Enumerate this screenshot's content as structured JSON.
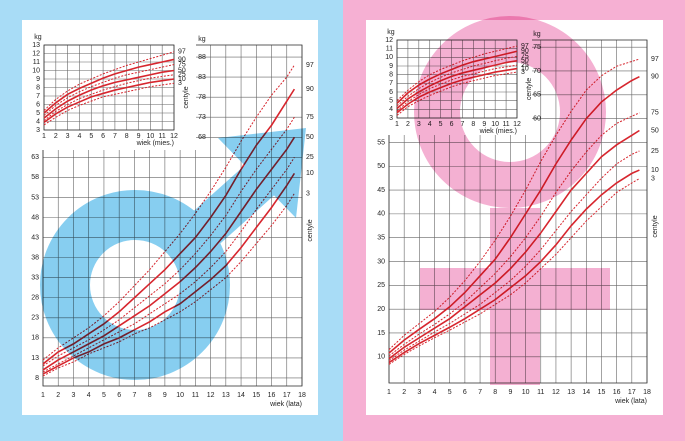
{
  "chart_data": [
    {
      "type": "line",
      "x_label": "wiek (lata)",
      "y2_label": "kg",
      "right_label": "centyle",
      "x": [
        1,
        2,
        3,
        4,
        5,
        6,
        7,
        8,
        9,
        10,
        11,
        12,
        13,
        14,
        15,
        16,
        17,
        17.5
      ],
      "xlim": [
        1,
        18
      ],
      "xticks": [
        1,
        2,
        3,
        4,
        5,
        6,
        7,
        8,
        9,
        10,
        11,
        12,
        13,
        14,
        15,
        16,
        17,
        18
      ],
      "ylim": [
        6,
        91
      ],
      "yticks": [
        8,
        13,
        18,
        23,
        28,
        33,
        38,
        43,
        48,
        53,
        58,
        63
      ],
      "y2lim": [
        6,
        91
      ],
      "y2ticks": [
        68,
        73,
        78,
        83,
        88
      ],
      "grid": true,
      "series": [
        {
          "name": "97",
          "color": "#d7262e",
          "dashed": true,
          "values": [
            12.5,
            15.5,
            18,
            20.5,
            23.5,
            27,
            31,
            35,
            39.5,
            44,
            49,
            54.5,
            60.5,
            67,
            73,
            78.5,
            83,
            86
          ]
        },
        {
          "name": "90",
          "color": "#d7262e",
          "dashed": false,
          "values": [
            11.5,
            14.5,
            16.5,
            19,
            21.5,
            24.5,
            28,
            31.5,
            35,
            39,
            43,
            48,
            53.5,
            60,
            66,
            71,
            77,
            80
          ]
        },
        {
          "name": "75",
          "color": "#d7262e",
          "dashed": true,
          "values": [
            11,
            13.5,
            15.5,
            17.5,
            20,
            22.5,
            25.5,
            28.5,
            31.5,
            35,
            39,
            43.5,
            48.5,
            54.5,
            60,
            65,
            70,
            73
          ]
        },
        {
          "name": "50",
          "color": "#d7262e",
          "dashed": false,
          "values": [
            10,
            12.5,
            14.5,
            16.5,
            18.5,
            21,
            23.5,
            26,
            29,
            32,
            35.5,
            39.5,
            44,
            49.5,
            55,
            60,
            65,
            68
          ]
        },
        {
          "name": "25",
          "color": "#d7262e",
          "dashed": true,
          "values": [
            9.5,
            11.5,
            13.5,
            15.5,
            17.5,
            19.5,
            21.5,
            24,
            26.5,
            29,
            32,
            35.5,
            39.5,
            44.5,
            50,
            55,
            60,
            63
          ]
        },
        {
          "name": "10",
          "color": "#d7262e",
          "dashed": false,
          "values": [
            9,
            11,
            13,
            14.5,
            16.5,
            18,
            20,
            22,
            24.5,
            26.5,
            29.5,
            32.5,
            36,
            40.5,
            45.5,
            50.5,
            56,
            59
          ]
        },
        {
          "name": "3",
          "color": "#d7262e",
          "dashed": true,
          "values": [
            8.5,
            10.5,
            12,
            14,
            15.5,
            17,
            19,
            20.5,
            22.5,
            24.5,
            27,
            30,
            33,
            37,
            41.5,
            46,
            51,
            54
          ]
        }
      ]
    },
    {
      "type": "line",
      "x_label": "wiek (mies.)",
      "y_label": "kg",
      "right_label": "centyle",
      "x": [
        1,
        2,
        3,
        4,
        5,
        6,
        7,
        8,
        9,
        10,
        11,
        12
      ],
      "xlim": [
        1,
        12
      ],
      "xticks": [
        1,
        2,
        3,
        4,
        5,
        6,
        7,
        8,
        9,
        10,
        11,
        12
      ],
      "ylim": [
        3,
        13
      ],
      "yticks": [
        3,
        4,
        5,
        6,
        7,
        8,
        9,
        10,
        11,
        12,
        13
      ],
      "grid": true,
      "series": [
        {
          "name": "97",
          "color": "#d7262e",
          "dashed": true,
          "values": [
            5.3,
            6.6,
            7.6,
            8.4,
            9,
            9.6,
            10.1,
            10.6,
            11,
            11.4,
            11.8,
            12.2
          ]
        },
        {
          "name": "90",
          "color": "#d7262e",
          "dashed": false,
          "values": [
            5,
            6.2,
            7.2,
            7.9,
            8.5,
            9.1,
            9.6,
            10,
            10.4,
            10.7,
            11,
            11.3
          ]
        },
        {
          "name": "75",
          "color": "#d7262e",
          "dashed": true,
          "values": [
            4.7,
            5.9,
            6.8,
            7.5,
            8.1,
            8.6,
            9.1,
            9.5,
            9.8,
            10.1,
            10.4,
            10.7
          ]
        },
        {
          "name": "50",
          "color": "#d7262e",
          "dashed": false,
          "values": [
            4.4,
            5.5,
            6.4,
            7.1,
            7.7,
            8.2,
            8.6,
            8.9,
            9.2,
            9.5,
            9.8,
            10
          ]
        },
        {
          "name": "25",
          "color": "#d7262e",
          "dashed": true,
          "values": [
            4.1,
            5.2,
            6,
            6.7,
            7.2,
            7.7,
            8.1,
            8.5,
            8.8,
            9.1,
            9.3,
            9.5
          ]
        },
        {
          "name": "10",
          "color": "#d7262e",
          "dashed": false,
          "values": [
            3.9,
            4.9,
            5.7,
            6.3,
            6.9,
            7.3,
            7.7,
            8,
            8.3,
            8.6,
            8.8,
            9
          ]
        },
        {
          "name": "3",
          "color": "#d7262e",
          "dashed": true,
          "values": [
            3.6,
            4.5,
            5.3,
            5.9,
            6.4,
            6.9,
            7.2,
            7.5,
            7.8,
            8.1,
            8.3,
            8.5
          ]
        }
      ]
    },
    {
      "type": "line",
      "x_label": "wiek (lata)",
      "y2_label": "kg",
      "right_label": "centyle",
      "x": [
        1,
        2,
        3,
        4,
        5,
        6,
        7,
        8,
        9,
        10,
        11,
        12,
        13,
        14,
        15,
        16,
        17,
        17.5
      ],
      "xlim": [
        1,
        18
      ],
      "xticks": [
        1,
        2,
        3,
        4,
        5,
        6,
        7,
        8,
        9,
        10,
        11,
        12,
        13,
        14,
        15,
        16,
        17,
        18
      ],
      "ylim": [
        4.5,
        76.5
      ],
      "yticks": [
        10,
        15,
        20,
        25,
        30,
        35,
        40,
        45,
        50,
        55
      ],
      "y2lim": [
        4.5,
        76.5
      ],
      "y2ticks": [
        60,
        65,
        70,
        75
      ],
      "grid": true,
      "series": [
        {
          "name": "97",
          "color": "#d7262e",
          "dashed": true,
          "values": [
            11.5,
            14.5,
            17,
            19.5,
            22.5,
            26,
            30,
            34.5,
            39.5,
            45,
            51,
            56.5,
            61.5,
            66,
            69,
            71,
            72,
            72.5
          ]
        },
        {
          "name": "90",
          "color": "#d7262e",
          "dashed": false,
          "values": [
            10.8,
            13.5,
            15.8,
            18,
            20.5,
            23.5,
            27,
            30.5,
            35,
            40,
            45,
            50.5,
            55.5,
            60,
            63.5,
            66,
            68,
            68.8
          ]
        },
        {
          "name": "75",
          "color": "#d7262e",
          "dashed": true,
          "values": [
            10.2,
            12.6,
            14.8,
            16.8,
            19,
            21.5,
            24.5,
            27.5,
            31,
            35,
            39.5,
            44.5,
            49,
            53,
            56.5,
            59,
            60.5,
            61.2
          ]
        },
        {
          "name": "50",
          "color": "#d7262e",
          "dashed": false,
          "values": [
            9.6,
            12,
            14,
            16,
            18,
            20.5,
            23,
            25.5,
            28.5,
            32,
            36,
            40.5,
            45,
            48.5,
            52,
            54.5,
            56.5,
            57.5
          ]
        },
        {
          "name": "25",
          "color": "#d7262e",
          "dashed": true,
          "values": [
            9.2,
            11.4,
            13.3,
            15.2,
            17,
            19,
            21,
            23.5,
            26,
            29,
            32.5,
            36.5,
            40.5,
            44,
            47.5,
            50.5,
            52.5,
            53.2
          ]
        },
        {
          "name": "10",
          "color": "#d7262e",
          "dashed": false,
          "values": [
            8.8,
            10.9,
            12.8,
            14.5,
            16.2,
            18,
            20,
            22,
            24.5,
            27,
            30,
            33.5,
            37.5,
            41,
            44,
            46.5,
            48.5,
            49.2
          ]
        },
        {
          "name": "3",
          "color": "#d7262e",
          "dashed": true,
          "values": [
            8.4,
            10.5,
            12.3,
            14,
            15.6,
            17.3,
            19,
            21,
            23,
            25.5,
            28.5,
            31.5,
            35,
            38.5,
            41.5,
            44.5,
            46.5,
            47.4
          ]
        }
      ]
    },
    {
      "type": "line",
      "x_label": "wiek (mies.)",
      "y_label": "kg",
      "right_label": "centyle",
      "x": [
        1,
        2,
        3,
        4,
        5,
        6,
        7,
        8,
        9,
        10,
        11,
        12
      ],
      "xlim": [
        1,
        12
      ],
      "xticks": [
        1,
        2,
        3,
        4,
        5,
        6,
        7,
        8,
        9,
        10,
        11,
        12
      ],
      "ylim": [
        3,
        12
      ],
      "yticks": [
        3,
        4,
        5,
        6,
        7,
        8,
        9,
        10,
        11,
        12
      ],
      "grid": true,
      "series": [
        {
          "name": "97",
          "color": "#d7262e",
          "dashed": true,
          "values": [
            5,
            6.2,
            7.2,
            8,
            8.6,
            9.1,
            9.6,
            10,
            10.4,
            10.7,
            11,
            11.3
          ]
        },
        {
          "name": "90",
          "color": "#d7262e",
          "dashed": false,
          "values": [
            4.7,
            5.9,
            6.8,
            7.5,
            8.1,
            8.6,
            9.1,
            9.5,
            9.8,
            10.1,
            10.4,
            10.7
          ]
        },
        {
          "name": "75",
          "color": "#d7262e",
          "dashed": true,
          "values": [
            4.4,
            5.5,
            6.4,
            7.1,
            7.7,
            8.2,
            8.6,
            9,
            9.3,
            9.6,
            9.9,
            10.1
          ]
        },
        {
          "name": "50",
          "color": "#d7262e",
          "dashed": false,
          "values": [
            4.1,
            5.2,
            6,
            6.7,
            7.3,
            7.8,
            8.2,
            8.5,
            8.8,
            9.1,
            9.4,
            9.6
          ]
        },
        {
          "name": "25",
          "color": "#d7262e",
          "dashed": true,
          "values": [
            3.8,
            4.9,
            5.7,
            6.4,
            6.9,
            7.4,
            7.8,
            8.1,
            8.4,
            8.7,
            8.9,
            9.1
          ]
        },
        {
          "name": "10",
          "color": "#d7262e",
          "dashed": false,
          "values": [
            3.6,
            4.6,
            5.4,
            6,
            6.5,
            7,
            7.4,
            7.7,
            8,
            8.3,
            8.5,
            8.7
          ]
        },
        {
          "name": "3",
          "color": "#d7262e",
          "dashed": true,
          "values": [
            3.3,
            4.3,
            5,
            5.6,
            6.1,
            6.6,
            7,
            7.3,
            7.6,
            7.9,
            8.1,
            8.3
          ]
        }
      ]
    }
  ]
}
